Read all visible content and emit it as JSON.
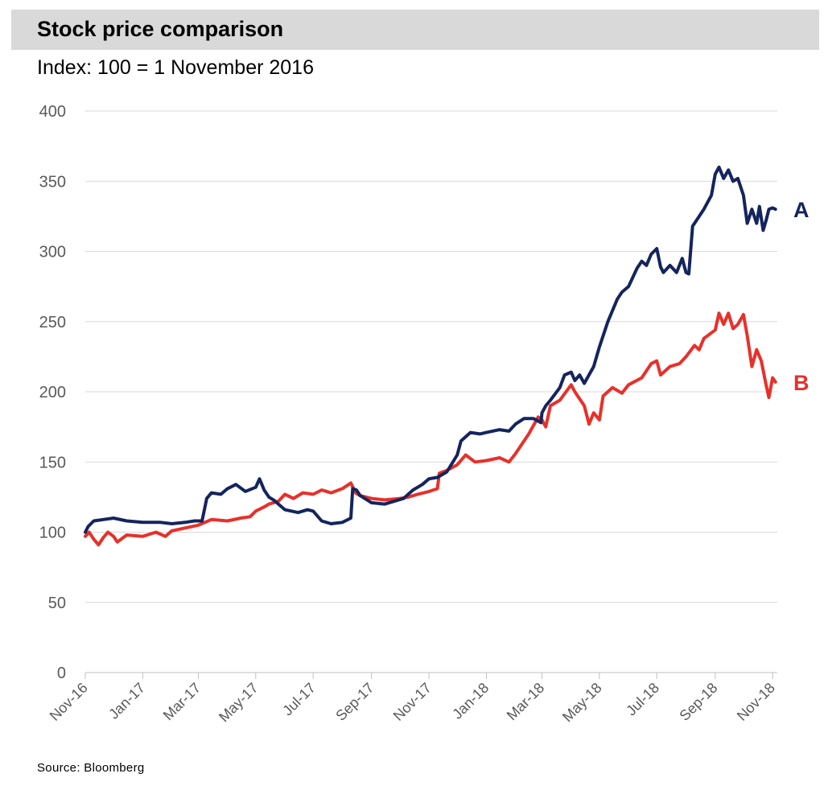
{
  "title": "Stock price comparison",
  "subtitle": "Index: 100 = 1 November 2016",
  "source": "Source: Bloomberg",
  "colors": {
    "A": "#14245e",
    "B": "#e8302a",
    "grid": "#d9d9d9",
    "title_bg": "#d9d9d9"
  },
  "chart_data": {
    "type": "line",
    "x_tick_labels": [
      "Nov-16",
      "Jan-17",
      "Mar-17",
      "May-17",
      "Jul-17",
      "Sep-17",
      "Nov-17",
      "Jan-18",
      "Mar-18",
      "May-18",
      "Jul-18",
      "Sep-18",
      "Nov-18"
    ],
    "x_tick_dates": [
      "2016-11-01",
      "2017-01-01",
      "2017-03-01",
      "2017-05-01",
      "2017-07-01",
      "2017-09-01",
      "2017-11-01",
      "2018-01-01",
      "2018-03-01",
      "2018-05-01",
      "2018-07-01",
      "2018-09-01",
      "2018-11-01"
    ],
    "y_ticks": [
      0,
      50,
      100,
      150,
      200,
      250,
      300,
      350,
      400
    ],
    "ylim": [
      0,
      400
    ],
    "xlim": [
      "2016-11-01",
      "2018-11-06"
    ],
    "grid": "horizontal",
    "legend": "end-of-line labels",
    "series": [
      {
        "name": "A",
        "points": [
          [
            "2016-11-01",
            100
          ],
          [
            "2016-11-04",
            104
          ],
          [
            "2016-11-10",
            108
          ],
          [
            "2016-11-20",
            109
          ],
          [
            "2016-12-01",
            110
          ],
          [
            "2016-12-15",
            108
          ],
          [
            "2017-01-01",
            107
          ],
          [
            "2017-01-20",
            107
          ],
          [
            "2017-02-01",
            106
          ],
          [
            "2017-02-15",
            107
          ],
          [
            "2017-02-25",
            108
          ],
          [
            "2017-03-05",
            108
          ],
          [
            "2017-03-10",
            124
          ],
          [
            "2017-03-15",
            128
          ],
          [
            "2017-03-25",
            127
          ],
          [
            "2017-04-01",
            131
          ],
          [
            "2017-04-10",
            134
          ],
          [
            "2017-04-20",
            129
          ],
          [
            "2017-05-01",
            132
          ],
          [
            "2017-05-05",
            138
          ],
          [
            "2017-05-10",
            130
          ],
          [
            "2017-05-15",
            125
          ],
          [
            "2017-05-20",
            123
          ],
          [
            "2017-06-01",
            116
          ],
          [
            "2017-06-15",
            114
          ],
          [
            "2017-06-25",
            116
          ],
          [
            "2017-07-01",
            115
          ],
          [
            "2017-07-10",
            108
          ],
          [
            "2017-07-20",
            106
          ],
          [
            "2017-08-01",
            107
          ],
          [
            "2017-08-10",
            110
          ],
          [
            "2017-08-12",
            131
          ],
          [
            "2017-08-16",
            130
          ],
          [
            "2017-08-20",
            126
          ],
          [
            "2017-09-01",
            121
          ],
          [
            "2017-09-15",
            120
          ],
          [
            "2017-09-25",
            122
          ],
          [
            "2017-10-05",
            124
          ],
          [
            "2017-10-15",
            130
          ],
          [
            "2017-10-25",
            134
          ],
          [
            "2017-11-01",
            138
          ],
          [
            "2017-11-10",
            139
          ],
          [
            "2017-11-20",
            143
          ],
          [
            "2017-12-01",
            155
          ],
          [
            "2017-12-05",
            165
          ],
          [
            "2017-12-15",
            171
          ],
          [
            "2017-12-25",
            170
          ],
          [
            "2018-01-01",
            171
          ],
          [
            "2018-01-15",
            173
          ],
          [
            "2018-01-25",
            172
          ],
          [
            "2018-02-01",
            177
          ],
          [
            "2018-02-10",
            181
          ],
          [
            "2018-02-20",
            181
          ],
          [
            "2018-02-28",
            178
          ],
          [
            "2018-03-01",
            185
          ],
          [
            "2018-03-05",
            190
          ],
          [
            "2018-03-10",
            194
          ],
          [
            "2018-03-20",
            203
          ],
          [
            "2018-03-25",
            212
          ],
          [
            "2018-04-01",
            214
          ],
          [
            "2018-04-05",
            208
          ],
          [
            "2018-04-10",
            212
          ],
          [
            "2018-04-15",
            206
          ],
          [
            "2018-04-25",
            218
          ],
          [
            "2018-05-01",
            232
          ],
          [
            "2018-05-10",
            250
          ],
          [
            "2018-05-20",
            266
          ],
          [
            "2018-05-25",
            271
          ],
          [
            "2018-06-01",
            275
          ],
          [
            "2018-06-10",
            288
          ],
          [
            "2018-06-15",
            293
          ],
          [
            "2018-06-20",
            290
          ],
          [
            "2018-06-25",
            298
          ],
          [
            "2018-07-01",
            302
          ],
          [
            "2018-07-05",
            289
          ],
          [
            "2018-07-08",
            285
          ],
          [
            "2018-07-15",
            290
          ],
          [
            "2018-07-22",
            285
          ],
          [
            "2018-07-28",
            295
          ],
          [
            "2018-08-01",
            285
          ],
          [
            "2018-08-04",
            284
          ],
          [
            "2018-08-08",
            318
          ],
          [
            "2018-08-12",
            322
          ],
          [
            "2018-08-20",
            330
          ],
          [
            "2018-08-28",
            340
          ],
          [
            "2018-09-01",
            355
          ],
          [
            "2018-09-05",
            360
          ],
          [
            "2018-09-10",
            352
          ],
          [
            "2018-09-15",
            358
          ],
          [
            "2018-09-20",
            350
          ],
          [
            "2018-09-25",
            352
          ],
          [
            "2018-10-01",
            340
          ],
          [
            "2018-10-05",
            320
          ],
          [
            "2018-10-10",
            330
          ],
          [
            "2018-10-15",
            320
          ],
          [
            "2018-10-18",
            332
          ],
          [
            "2018-10-22",
            315
          ],
          [
            "2018-10-25",
            322
          ],
          [
            "2018-10-28",
            330
          ],
          [
            "2018-11-01",
            331
          ],
          [
            "2018-11-04",
            330
          ]
        ]
      },
      {
        "name": "B",
        "points": [
          [
            "2016-11-01",
            97
          ],
          [
            "2016-11-05",
            100
          ],
          [
            "2016-11-10",
            95
          ],
          [
            "2016-11-15",
            91
          ],
          [
            "2016-11-20",
            96
          ],
          [
            "2016-11-25",
            100
          ],
          [
            "2016-12-01",
            97
          ],
          [
            "2016-12-05",
            93
          ],
          [
            "2016-12-15",
            98
          ],
          [
            "2017-01-01",
            97
          ],
          [
            "2017-01-15",
            100
          ],
          [
            "2017-01-25",
            97
          ],
          [
            "2017-02-01",
            101
          ],
          [
            "2017-02-15",
            103
          ],
          [
            "2017-03-01",
            105
          ],
          [
            "2017-03-15",
            109
          ],
          [
            "2017-04-01",
            108
          ],
          [
            "2017-04-15",
            110
          ],
          [
            "2017-04-25",
            111
          ],
          [
            "2017-05-01",
            115
          ],
          [
            "2017-05-10",
            118
          ],
          [
            "2017-05-15",
            120
          ],
          [
            "2017-05-25",
            122
          ],
          [
            "2017-06-01",
            127
          ],
          [
            "2017-06-10",
            124
          ],
          [
            "2017-06-20",
            128
          ],
          [
            "2017-07-01",
            127
          ],
          [
            "2017-07-10",
            130
          ],
          [
            "2017-07-20",
            128
          ],
          [
            "2017-08-01",
            131
          ],
          [
            "2017-08-10",
            135
          ],
          [
            "2017-08-15",
            128
          ],
          [
            "2017-08-20",
            126
          ],
          [
            "2017-09-01",
            124
          ],
          [
            "2017-09-15",
            123
          ],
          [
            "2017-10-01",
            124
          ],
          [
            "2017-10-10",
            125
          ],
          [
            "2017-10-20",
            127
          ],
          [
            "2017-11-01",
            129
          ],
          [
            "2017-11-10",
            131
          ],
          [
            "2017-11-12",
            142
          ],
          [
            "2017-11-20",
            144
          ],
          [
            "2017-12-01",
            148
          ],
          [
            "2017-12-10",
            155
          ],
          [
            "2017-12-20",
            150
          ],
          [
            "2018-01-01",
            151
          ],
          [
            "2018-01-15",
            153
          ],
          [
            "2018-01-25",
            150
          ],
          [
            "2018-02-01",
            156
          ],
          [
            "2018-02-15",
            170
          ],
          [
            "2018-02-25",
            182
          ],
          [
            "2018-03-01",
            180
          ],
          [
            "2018-03-05",
            175
          ],
          [
            "2018-03-10",
            190
          ],
          [
            "2018-03-20",
            194
          ],
          [
            "2018-04-01",
            205
          ],
          [
            "2018-04-05",
            200
          ],
          [
            "2018-04-15",
            190
          ],
          [
            "2018-04-20",
            177
          ],
          [
            "2018-04-25",
            185
          ],
          [
            "2018-05-01",
            180
          ],
          [
            "2018-05-05",
            197
          ],
          [
            "2018-05-15",
            203
          ],
          [
            "2018-05-25",
            199
          ],
          [
            "2018-06-01",
            205
          ],
          [
            "2018-06-15",
            210
          ],
          [
            "2018-06-25",
            220
          ],
          [
            "2018-07-01",
            222
          ],
          [
            "2018-07-05",
            212
          ],
          [
            "2018-07-15",
            218
          ],
          [
            "2018-07-25",
            220
          ],
          [
            "2018-08-01",
            225
          ],
          [
            "2018-08-10",
            233
          ],
          [
            "2018-08-15",
            230
          ],
          [
            "2018-08-20",
            238
          ],
          [
            "2018-09-01",
            244
          ],
          [
            "2018-09-05",
            256
          ],
          [
            "2018-09-10",
            248
          ],
          [
            "2018-09-15",
            256
          ],
          [
            "2018-09-20",
            245
          ],
          [
            "2018-09-25",
            248
          ],
          [
            "2018-10-01",
            255
          ],
          [
            "2018-10-05",
            240
          ],
          [
            "2018-10-10",
            218
          ],
          [
            "2018-10-15",
            230
          ],
          [
            "2018-10-20",
            222
          ],
          [
            "2018-10-25",
            205
          ],
          [
            "2018-10-28",
            196
          ],
          [
            "2018-11-01",
            210
          ],
          [
            "2018-11-04",
            207
          ]
        ]
      }
    ]
  }
}
